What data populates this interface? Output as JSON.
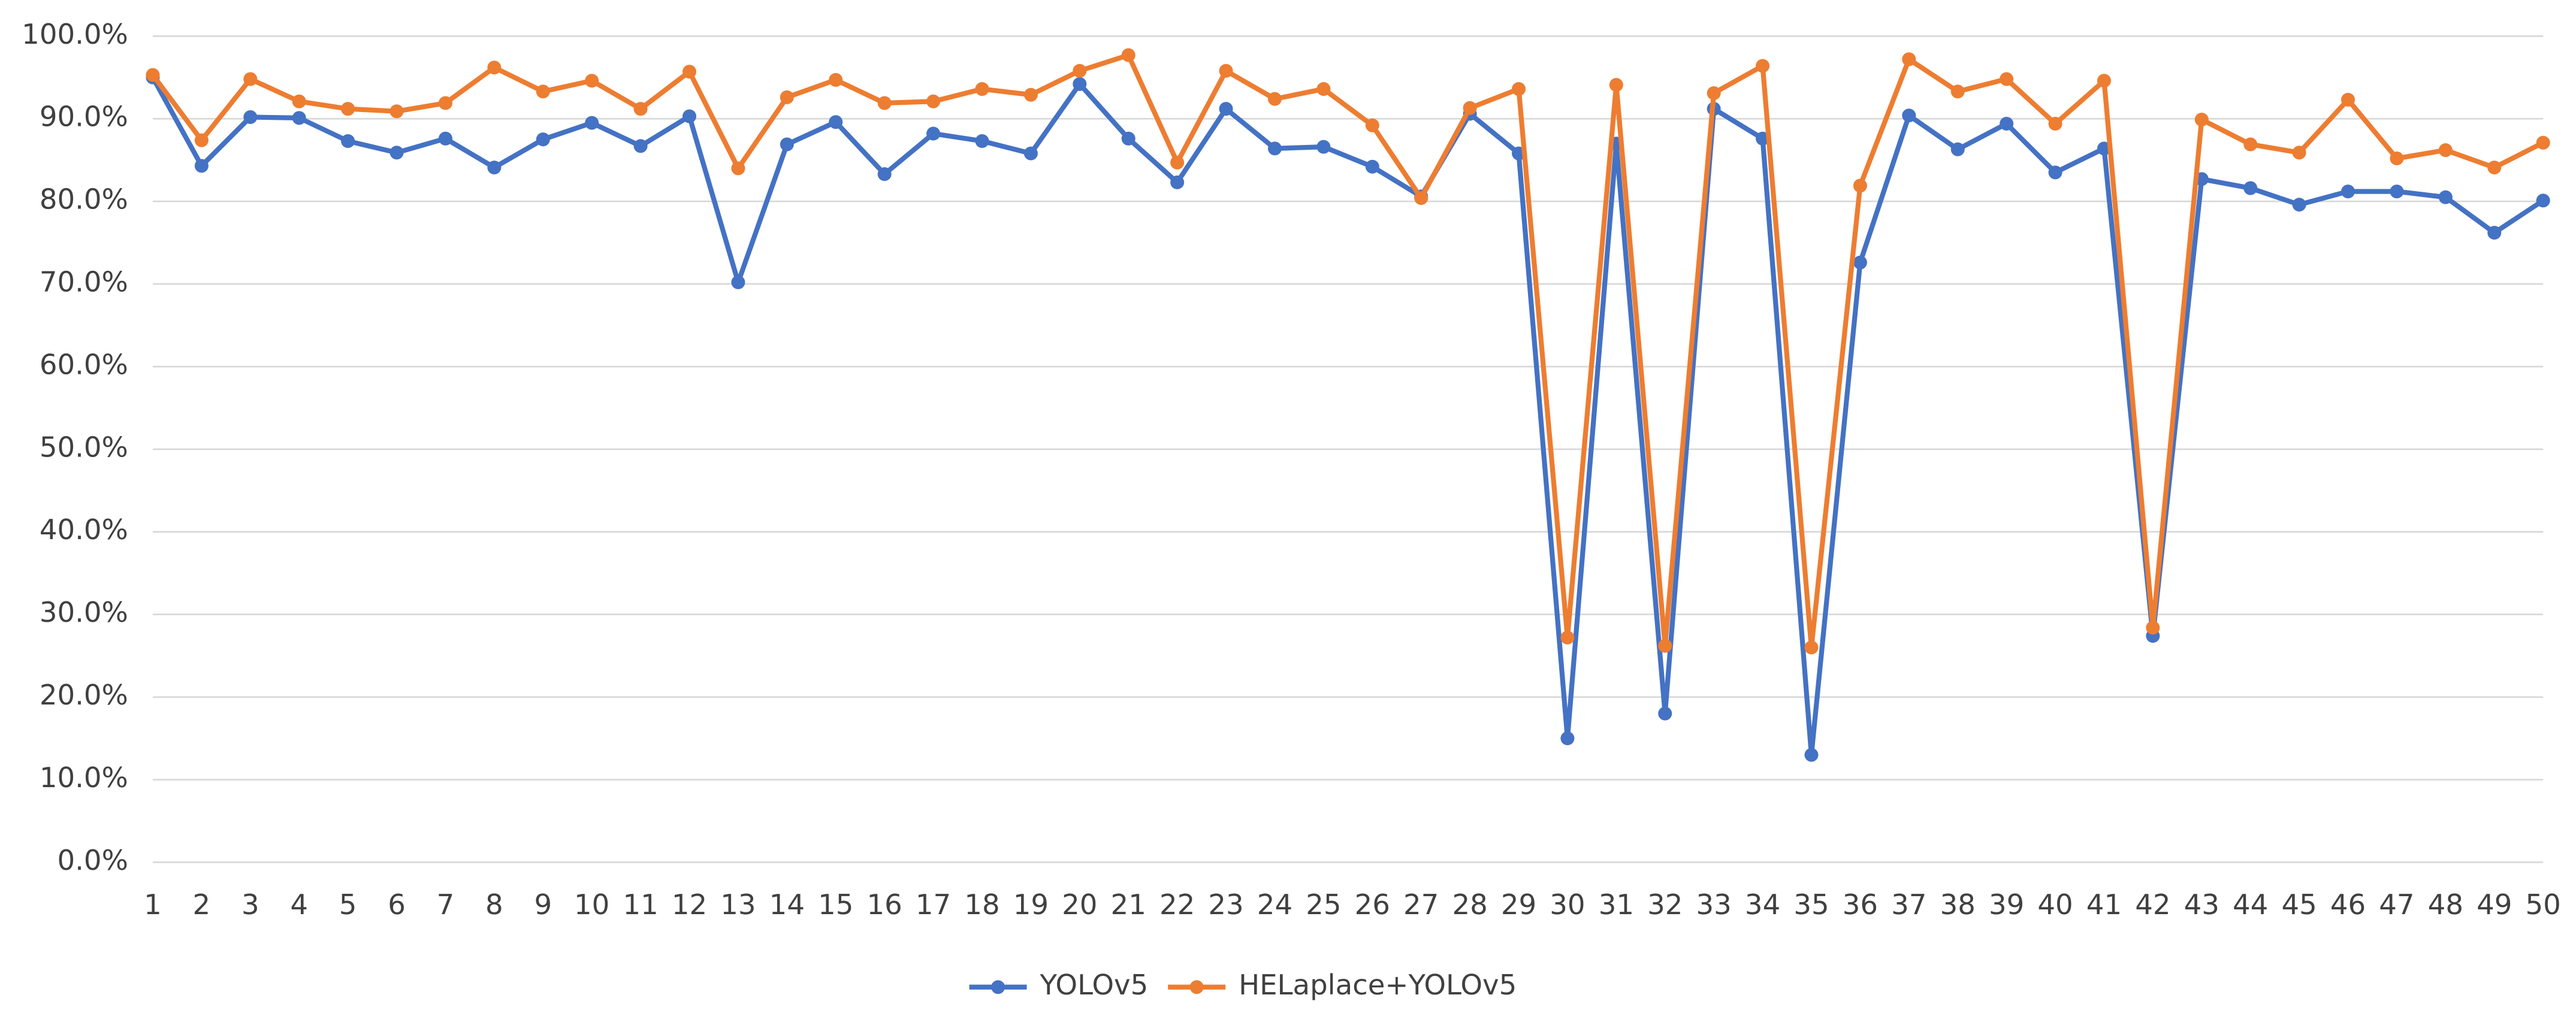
{
  "chart_data": {
    "type": "line",
    "categories": [
      "1",
      "2",
      "3",
      "4",
      "5",
      "6",
      "7",
      "8",
      "9",
      "10",
      "11",
      "12",
      "13",
      "14",
      "15",
      "16",
      "17",
      "18",
      "19",
      "20",
      "21",
      "22",
      "23",
      "24",
      "25",
      "26",
      "27",
      "28",
      "29",
      "30",
      "31",
      "32",
      "33",
      "34",
      "35",
      "36",
      "37",
      "38",
      "39",
      "40",
      "41",
      "42",
      "43",
      "44",
      "45",
      "46",
      "47",
      "48",
      "49",
      "50"
    ],
    "series": [
      {
        "name": "YOLOv5",
        "color": "#4472c4",
        "values": [
          95.0,
          84.3,
          90.2,
          90.1,
          87.3,
          85.9,
          87.6,
          84.1,
          87.5,
          89.5,
          86.7,
          90.3,
          70.2,
          86.9,
          89.6,
          83.3,
          88.2,
          87.3,
          85.8,
          94.2,
          87.6,
          82.3,
          91.2,
          86.4,
          86.6,
          84.2,
          80.6,
          90.6,
          85.8,
          15.0,
          87.0,
          18.0,
          91.2,
          87.6,
          13.0,
          72.6,
          90.4,
          86.3,
          89.4,
          83.5,
          86.4,
          27.4,
          82.7,
          81.6,
          79.6,
          81.2,
          81.2,
          80.5,
          76.2,
          80.1
        ]
      },
      {
        "name": "HELaplace+YOLOv5",
        "color": "#ed7d31",
        "values": [
          95.3,
          87.4,
          94.8,
          92.1,
          91.2,
          90.9,
          91.9,
          96.2,
          93.3,
          94.6,
          91.2,
          95.7,
          84.0,
          92.6,
          94.7,
          91.9,
          92.1,
          93.6,
          92.9,
          95.8,
          97.7,
          84.7,
          95.8,
          92.4,
          93.6,
          89.2,
          80.4,
          91.3,
          93.6,
          27.2,
          94.1,
          26.2,
          93.1,
          96.4,
          26.0,
          81.9,
          97.2,
          93.3,
          94.8,
          89.4,
          94.6,
          28.4,
          89.9,
          86.9,
          85.9,
          92.3,
          85.2,
          86.2,
          84.1,
          87.1
        ]
      }
    ],
    "ylim": [
      0,
      100
    ],
    "yticks": [
      {
        "value": 0,
        "label": "0.0%"
      },
      {
        "value": 10,
        "label": "10.0%"
      },
      {
        "value": 20,
        "label": "20.0%"
      },
      {
        "value": 30,
        "label": "30.0%"
      },
      {
        "value": 40,
        "label": "40.0%"
      },
      {
        "value": 50,
        "label": "50.0%"
      },
      {
        "value": 60,
        "label": "60.0%"
      },
      {
        "value": 70,
        "label": "70.0%"
      },
      {
        "value": 80,
        "label": "80.0%"
      },
      {
        "value": 90,
        "label": "90.0%"
      },
      {
        "value": 100,
        "label": "100.0%"
      }
    ],
    "grid": true,
    "legend": "bottom"
  }
}
